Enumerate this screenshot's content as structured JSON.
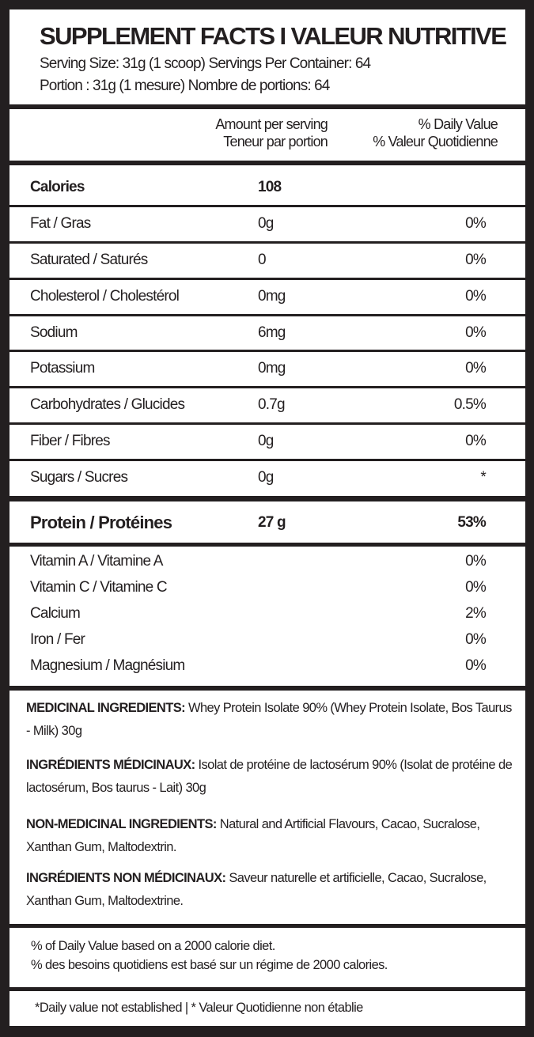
{
  "header": {
    "title": "SUPPLEMENT FACTS I VALEUR NUTRITIVE",
    "serving_en": "Serving Size: 31g (1 scoop) Servings Per Container: 64",
    "serving_fr": "Portion : 31g (1 mesure) Nombre de portions: 64"
  },
  "columns": {
    "amount_en": "Amount per serving",
    "amount_fr": "Teneur par portion",
    "dv_en": "% Daily Value",
    "dv_fr": "% Valeur Quotidienne"
  },
  "nutrients": [
    {
      "name": "Calories",
      "amount": "108",
      "dv": ""
    },
    {
      "name": "Fat / Gras",
      "amount": "0g",
      "dv": "0%"
    },
    {
      "name": "Saturated / Saturés",
      "amount": "0",
      "dv": "0%"
    },
    {
      "name": "Cholesterol / Cholestérol",
      "amount": "0mg",
      "dv": "0%"
    },
    {
      "name": "Sodium",
      "amount": "6mg",
      "dv": "0%"
    },
    {
      "name": "Potassium",
      "amount": "0mg",
      "dv": "0%"
    },
    {
      "name": "Carbohydrates / Glucides",
      "amount": "0.7g",
      "dv": "0.5%"
    },
    {
      "name": "Fiber / Fibres",
      "amount": "0g",
      "dv": "0%"
    },
    {
      "name": "Sugars / Sucres",
      "amount": "0g",
      "dv": "*"
    }
  ],
  "protein": {
    "name": "Protein / Protéines",
    "amount": "27 g",
    "dv": "53%"
  },
  "vitamins": [
    {
      "name": "Vitamin A / Vitamine A",
      "dv": "0%"
    },
    {
      "name": "Vitamin C / Vitamine C",
      "dv": "0%"
    },
    {
      "name": "Calcium",
      "dv": "2%"
    },
    {
      "name": "Iron / Fer",
      "dv": "0%"
    },
    {
      "name": "Magnesium / Magnésium",
      "dv": "0%"
    }
  ],
  "ingredients": [
    {
      "label": "MEDICINAL INGREDIENTS:",
      "text": " Whey Protein Isolate 90% (Whey Protein Isolate, Bos Taurus - Milk) 30g"
    },
    {
      "label": "INGRÉDIENTS MÉDICINAUX:",
      "text": " Isolat de protéine de lactosérum 90% (Isolat de protéine de lactosérum, Bos taurus - Lait)  30g"
    },
    {
      "label": "NON-MEDICINAL INGREDIENTS:",
      "text": " Natural and Artificial Flavours, Cacao, Sucralose, Xanthan Gum, Maltodextrin."
    },
    {
      "label": "INGRÉDIENTS NON MÉDICINAUX:",
      "text": " Saveur naturelle et artificielle, Cacao, Sucralose, Xanthan Gum, Maltodextrine."
    }
  ],
  "footer": {
    "basis_en": "% of Daily Value based on a 2000 calorie diet.",
    "basis_fr": "% des besoins quotidiens est basé sur un régime de 2000 calories.",
    "note": "*Daily value not established | * Valeur Quotidienne non établie"
  },
  "colors": {
    "ink": "#231f20",
    "background": "#ffffff"
  }
}
